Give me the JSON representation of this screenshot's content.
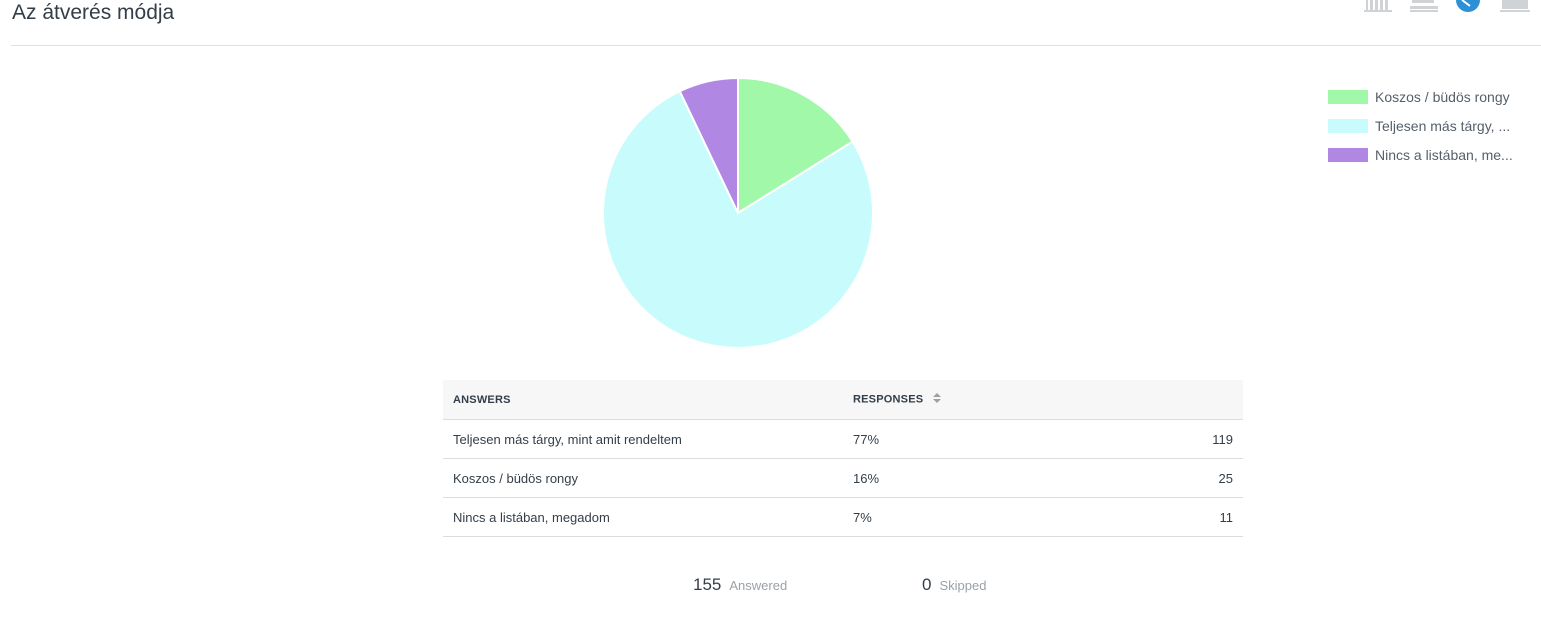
{
  "page": {
    "title": "Az átverés módja"
  },
  "toolbar": {
    "icons": [
      "vertical-bar-chart-icon",
      "horizontal-bar-chart-icon",
      "pie-chart-icon",
      "area-chart-icon"
    ],
    "active": "pie-chart-icon",
    "active_color": "#2d8fd5",
    "inactive_color": "#cfd3d6"
  },
  "chart_data": {
    "type": "pie",
    "categories": [
      "Koszos / büdös rongy",
      "Teljesen más tárgy, mint amit rendeltem",
      "Nincs a listában, megadom"
    ],
    "values": [
      25,
      119,
      11
    ],
    "colors": [
      "#a0f8a8",
      "#c8fcfc",
      "#b088e4"
    ],
    "legend": {
      "placement": "top-right",
      "entries": [
        "Koszos / büdös rongy",
        "Teljesen más tárgy, ...",
        "Nincs a listában, me..."
      ]
    }
  },
  "table": {
    "headers": {
      "answers": "ANSWERS",
      "responses": "RESPONSES"
    },
    "rows": [
      {
        "answer": "Teljesen más tárgy, mint amit rendeltem",
        "percent": "77%",
        "count": "119"
      },
      {
        "answer": "Koszos / büdös rongy",
        "percent": "16%",
        "count": "25"
      },
      {
        "answer": "Nincs a listában, megadom",
        "percent": "7%",
        "count": "11"
      }
    ]
  },
  "summary": {
    "answered": {
      "count": "155",
      "label": "Answered"
    },
    "skipped": {
      "count": "0",
      "label": "Skipped"
    }
  }
}
